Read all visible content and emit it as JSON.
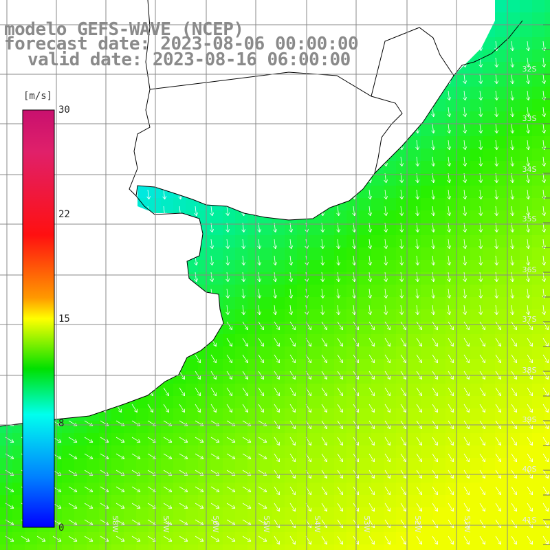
{
  "title": {
    "line1": "modelo GEFS-WAVE (NCEP)",
    "line2": "forecast date: 2023-08-06 00:00:00",
    "line3": "valid date: 2023-08-16 06:00:00"
  },
  "colorbar": {
    "unit": "[m/s]",
    "ticks": [
      "30",
      "22",
      "15",
      "8",
      "0"
    ],
    "range": [
      0,
      30
    ]
  },
  "grid": {
    "lat_labels": [
      "32S",
      "33S",
      "34S",
      "35S",
      "36S",
      "37S",
      "38S",
      "39S",
      "40S",
      "41S"
    ],
    "lon_labels": [
      "58W",
      "57W",
      "56W",
      "55W",
      "54W",
      "53W",
      "52W",
      "51W"
    ]
  },
  "colors": {
    "land": "#ffffff",
    "coast": "#000000",
    "grid": "#888888",
    "arrow": "#ffffff"
  }
}
